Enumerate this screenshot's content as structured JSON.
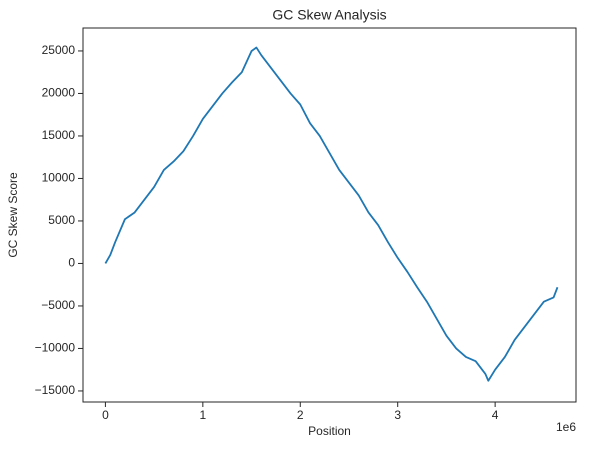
{
  "chart_data": {
    "type": "line",
    "title": "GC Skew Analysis",
    "xlabel": "Position",
    "ylabel": "GC Skew Score",
    "x_offset_label": "1e6",
    "x": [
      0,
      50000,
      100000,
      200000,
      300000,
      400000,
      500000,
      600000,
      700000,
      800000,
      900000,
      1000000,
      1100000,
      1200000,
      1300000,
      1400000,
      1500000,
      1550000,
      1600000,
      1700000,
      1800000,
      1900000,
      2000000,
      2100000,
      2200000,
      2300000,
      2400000,
      2500000,
      2600000,
      2700000,
      2800000,
      2900000,
      3000000,
      3100000,
      3200000,
      3300000,
      3400000,
      3500000,
      3600000,
      3700000,
      3800000,
      3900000,
      3930000,
      4000000,
      4100000,
      4200000,
      4300000,
      4400000,
      4500000,
      4600000,
      4640000
    ],
    "series": [
      {
        "name": "GC Skew",
        "color": "#1f77b4",
        "values": [
          0,
          1000,
          2500,
          5200,
          6000,
          7500,
          9000,
          11000,
          12000,
          13200,
          15000,
          17000,
          18500,
          20000,
          21300,
          22500,
          25000,
          25400,
          24500,
          23000,
          21500,
          20000,
          18700,
          16500,
          15000,
          13000,
          11000,
          9500,
          8000,
          6000,
          4500,
          2500,
          650,
          -1000,
          -2800,
          -4500,
          -6500,
          -8500,
          -10000,
          -11000,
          -11500,
          -13000,
          -13800,
          -12500,
          -11000,
          -9000,
          -7500,
          -6000,
          -4500,
          -4000,
          -2800
        ]
      }
    ],
    "xlim": [
      -230000,
      4830000
    ],
    "xticks": [
      {
        "value": 0,
        "label": "0"
      },
      {
        "value": 1000000,
        "label": "1"
      },
      {
        "value": 2000000,
        "label": "2"
      },
      {
        "value": 3000000,
        "label": "3"
      },
      {
        "value": 4000000,
        "label": "4"
      }
    ],
    "ylim": [
      -16300,
      27700
    ],
    "yticks": [
      {
        "value": -15000,
        "label": "−15000"
      },
      {
        "value": -10000,
        "label": "−10000"
      },
      {
        "value": -5000,
        "label": "−5000"
      },
      0,
      5000,
      10000,
      15000,
      20000,
      25000
    ],
    "grid": false
  }
}
